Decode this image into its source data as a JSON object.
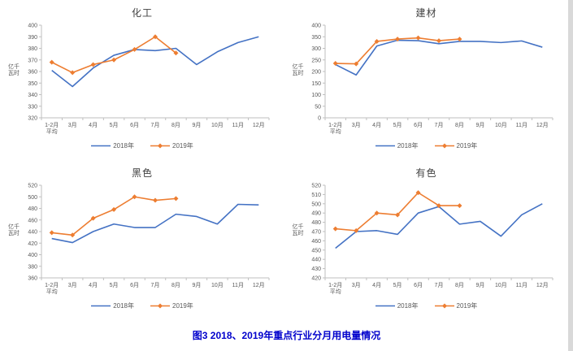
{
  "caption": {
    "text": "图3  2018、2019年重点行业分月用电量情况",
    "color": "#0000CC"
  },
  "colors": {
    "series_2018": "#4472C4",
    "series_2019": "#ED7D31",
    "axis": "#BFBFBF",
    "tick_text": "#595959",
    "title_text": "#404040"
  },
  "chart_data": [
    {
      "type": "line",
      "title": "化工",
      "ylabel": "亿千瓦时",
      "categories": [
        "1-2月\n平均",
        "3月",
        "4月",
        "5月",
        "6月",
        "7月",
        "8月",
        "9月",
        "10月",
        "11月",
        "12月"
      ],
      "ylim": [
        320,
        400
      ],
      "ytick": 10,
      "grid": false,
      "legend_position": "bottom",
      "series": [
        {
          "name": "2018年",
          "color": "#4472C4",
          "marker": "none",
          "values": [
            361,
            347,
            363,
            374,
            379,
            378,
            380,
            366,
            377,
            385,
            390
          ]
        },
        {
          "name": "2019年",
          "color": "#ED7D31",
          "marker": "diamond",
          "values": [
            368,
            359,
            366,
            370,
            379,
            390,
            376
          ]
        }
      ]
    },
    {
      "type": "line",
      "title": "建材",
      "ylabel": "亿千瓦时",
      "categories": [
        "1-2月\n平均",
        "3月",
        "4月",
        "5月",
        "6月",
        "7月",
        "8月",
        "9月",
        "10月",
        "11月",
        "12月"
      ],
      "ylim": [
        0,
        400
      ],
      "ytick": 50,
      "grid": false,
      "legend_position": "bottom",
      "series": [
        {
          "name": "2018年",
          "color": "#4472C4",
          "marker": "none",
          "values": [
            230,
            185,
            310,
            335,
            333,
            320,
            330,
            330,
            325,
            332,
            305
          ]
        },
        {
          "name": "2019年",
          "color": "#ED7D31",
          "marker": "diamond",
          "values": [
            235,
            233,
            330,
            340,
            345,
            333,
            340
          ]
        }
      ]
    },
    {
      "type": "line",
      "title": "黑色",
      "ylabel": "亿千瓦时",
      "categories": [
        "1-2月\n平均",
        "3月",
        "4月",
        "5月",
        "6月",
        "7月",
        "8月",
        "9月",
        "10月",
        "11月",
        "12月"
      ],
      "ylim": [
        360,
        520
      ],
      "ytick": 20,
      "grid": false,
      "legend_position": "bottom",
      "series": [
        {
          "name": "2018年",
          "color": "#4472C4",
          "marker": "none",
          "values": [
            428,
            421,
            440,
            453,
            447,
            447,
            470,
            466,
            453,
            487,
            486
          ]
        },
        {
          "name": "2019年",
          "color": "#ED7D31",
          "marker": "diamond",
          "values": [
            438,
            434,
            463,
            478,
            500,
            494,
            497
          ]
        }
      ]
    },
    {
      "type": "line",
      "title": "有色",
      "ylabel": "亿千瓦时",
      "categories": [
        "1-2月\n平均",
        "3月",
        "4月",
        "5月",
        "6月",
        "7月",
        "8月",
        "9月",
        "10月",
        "11月",
        "12月"
      ],
      "ylim": [
        420,
        520
      ],
      "ytick": 10,
      "grid": false,
      "legend_position": "bottom",
      "series": [
        {
          "name": "2018年",
          "color": "#4472C4",
          "marker": "none",
          "values": [
            452,
            470,
            471,
            467,
            490,
            497,
            478,
            481,
            465,
            488,
            500
          ]
        },
        {
          "name": "2019年",
          "color": "#ED7D31",
          "marker": "diamond",
          "values": [
            473,
            471,
            490,
            488,
            512,
            498,
            498
          ]
        }
      ]
    }
  ]
}
